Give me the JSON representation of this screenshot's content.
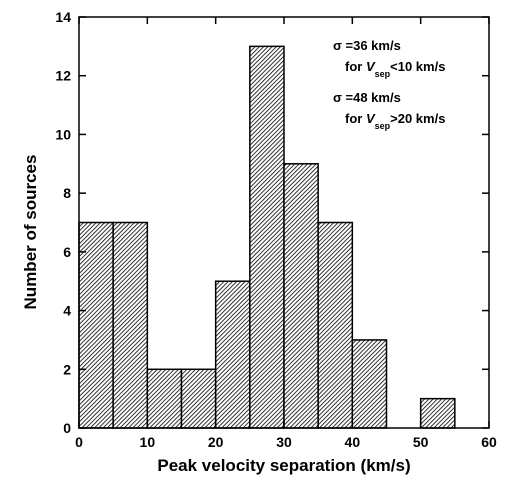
{
  "chart_data": {
    "type": "histogram",
    "xlabel": "Peak velocity separation (km/s)",
    "ylabel": "Number of sources",
    "bins": [
      0,
      5,
      10,
      15,
      20,
      25,
      30,
      35,
      40,
      45,
      50,
      55
    ],
    "values": [
      7,
      7,
      2,
      2,
      5,
      13,
      9,
      7,
      3,
      0,
      1
    ],
    "color": "#000000",
    "xlim": [
      0,
      60
    ],
    "xticks": [
      0,
      10,
      20,
      30,
      40,
      50,
      60
    ],
    "ylim": [
      0,
      14
    ],
    "yticks": [
      0,
      2,
      4,
      6,
      8,
      10,
      12,
      14
    ],
    "annotations": [
      {
        "sigma": "σ =36 km/s",
        "condition": [
          "for ",
          "V",
          "sep",
          "<10 km/s"
        ]
      },
      {
        "sigma": "σ =48 km/s",
        "condition": [
          "for ",
          "V",
          "sep",
          ">20 km/s"
        ]
      }
    ]
  }
}
